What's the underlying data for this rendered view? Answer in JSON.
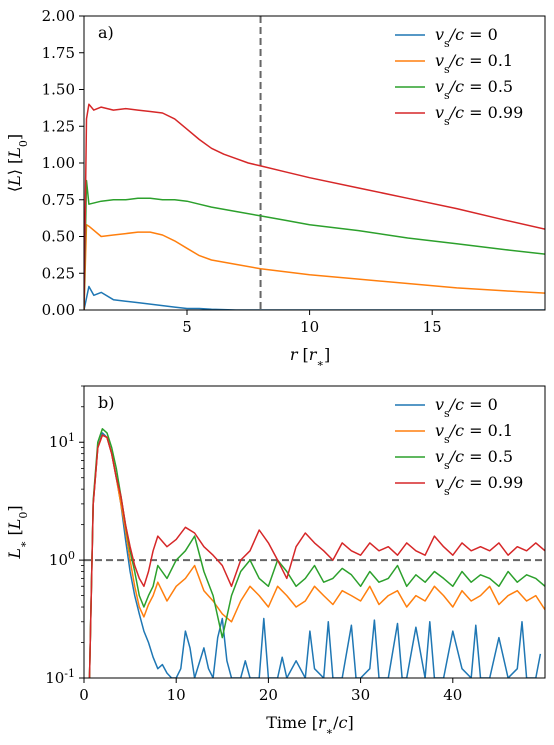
{
  "chart_data": [
    {
      "type": "line",
      "panel_label": "a)",
      "xlabel": "r [r∗]",
      "ylabel": "⟨L⟩ [L0]",
      "xlim": [
        0.8,
        19.6
      ],
      "ylim": [
        0,
        2.0
      ],
      "xticks": [
        5,
        10,
        15
      ],
      "yticks": [
        0.0,
        0.25,
        0.5,
        0.75,
        1.0,
        1.25,
        1.5,
        1.75,
        2.0
      ],
      "ytick_labels": [
        "0.00",
        "0.25",
        "0.50",
        "0.75",
        "1.00",
        "1.25",
        "1.50",
        "1.75",
        "2.00"
      ],
      "vline_x": 8.0,
      "legend_position": "top-right",
      "series": [
        {
          "name": "vs/c = 0",
          "color": "#1f77b4",
          "x": [
            0.8,
            1.0,
            1.2,
            1.5,
            2.0,
            2.5,
            3.0,
            3.5,
            4.0,
            4.5,
            5.0,
            5.5,
            6.0,
            7.0,
            8.0,
            10.0,
            12.0,
            15.0,
            19.6
          ],
          "y": [
            0.0,
            0.16,
            0.1,
            0.12,
            0.07,
            0.06,
            0.05,
            0.04,
            0.03,
            0.02,
            0.01,
            0.01,
            0.005,
            0.0,
            0.0,
            0.0,
            0.0,
            0.0,
            0.0
          ]
        },
        {
          "name": "vs/c = 0.1",
          "color": "#ff7f0e",
          "x": [
            0.8,
            0.9,
            1.0,
            1.5,
            2.0,
            2.5,
            3.0,
            3.5,
            4.0,
            4.5,
            5.0,
            5.5,
            6.0,
            7.0,
            8.0,
            9.0,
            10.0,
            12.0,
            14.0,
            16.0,
            18.0,
            19.6
          ],
          "y": [
            0.0,
            0.58,
            0.57,
            0.5,
            0.51,
            0.52,
            0.53,
            0.53,
            0.51,
            0.47,
            0.42,
            0.37,
            0.34,
            0.31,
            0.28,
            0.26,
            0.24,
            0.21,
            0.18,
            0.15,
            0.13,
            0.115
          ]
        },
        {
          "name": "vs/c = 0.5",
          "color": "#2ca02c",
          "x": [
            0.8,
            0.9,
            1.0,
            1.5,
            2.0,
            2.5,
            3.0,
            3.5,
            4.0,
            4.5,
            5.0,
            5.5,
            6.0,
            7.0,
            8.0,
            9.0,
            10.0,
            12.0,
            14.0,
            16.0,
            18.0,
            19.6
          ],
          "y": [
            0.0,
            0.88,
            0.72,
            0.74,
            0.75,
            0.75,
            0.76,
            0.76,
            0.75,
            0.75,
            0.74,
            0.72,
            0.7,
            0.67,
            0.64,
            0.61,
            0.58,
            0.54,
            0.49,
            0.45,
            0.41,
            0.38
          ]
        },
        {
          "name": "vs/c = 0.99",
          "color": "#d62728",
          "x": [
            0.8,
            0.9,
            1.0,
            1.2,
            1.5,
            2.0,
            2.5,
            3.0,
            3.5,
            4.0,
            4.5,
            5.0,
            5.5,
            6.0,
            6.5,
            7.0,
            7.5,
            8.0,
            9.0,
            10.0,
            12.0,
            14.0,
            16.0,
            18.0,
            19.6
          ],
          "y": [
            0.0,
            1.3,
            1.4,
            1.36,
            1.38,
            1.36,
            1.37,
            1.36,
            1.35,
            1.34,
            1.3,
            1.23,
            1.16,
            1.1,
            1.06,
            1.03,
            1.0,
            0.98,
            0.94,
            0.9,
            0.83,
            0.76,
            0.69,
            0.61,
            0.55
          ]
        }
      ]
    },
    {
      "type": "line",
      "panel_label": "b)",
      "xlabel": "Time [r∗/c]",
      "ylabel": "L∗ [L0]",
      "yscale": "log",
      "xlim": [
        0,
        50
      ],
      "ylim": [
        0.1,
        30
      ],
      "xticks": [
        0,
        10,
        20,
        30,
        40
      ],
      "ytick_labels": [
        "10^-1",
        "10^0",
        "10^1"
      ],
      "hline_y": 1.0,
      "legend_position": "top-right",
      "series": [
        {
          "name": "vs/c = 0",
          "color": "#1f77b4",
          "x": [
            0.6,
            1.0,
            1.5,
            2.0,
            2.5,
            3.0,
            3.5,
            4.0,
            4.5,
            5.0,
            5.5,
            6.0,
            6.5,
            7.0,
            7.5,
            8.0,
            8.5,
            9.0,
            9.5,
            10.0,
            10.5,
            11.0,
            11.5,
            12.0,
            13.0,
            13.5,
            14.0,
            14.5,
            15.0,
            15.5,
            16.0,
            17.0,
            17.5,
            18.0,
            19.0,
            19.5,
            20.0,
            21.0,
            21.5,
            22.0,
            23.0,
            24.0,
            24.5,
            25.0,
            26.0,
            26.5,
            27.0,
            28.0,
            29.0,
            29.5,
            30.0,
            31.0,
            31.5,
            32.0,
            33.0,
            34.0,
            34.5,
            35.0,
            36.0,
            37.0,
            37.5,
            38.0,
            39.0,
            40.0,
            41.0,
            42.0,
            42.5,
            43.0,
            44.0,
            45.0,
            46.0,
            47.0,
            47.5,
            48.0,
            49.0,
            49.5
          ],
          "y": [
            0.1,
            3.0,
            9.0,
            12.0,
            11.0,
            8.0,
            5.0,
            3.0,
            1.5,
            0.8,
            0.5,
            0.35,
            0.25,
            0.2,
            0.15,
            0.12,
            0.13,
            0.11,
            0.1,
            0.1,
            0.12,
            0.25,
            0.18,
            0.1,
            0.18,
            0.12,
            0.1,
            0.22,
            0.32,
            0.14,
            0.1,
            0.1,
            0.14,
            0.1,
            0.1,
            0.32,
            0.1,
            0.1,
            0.15,
            0.1,
            0.14,
            0.1,
            0.25,
            0.12,
            0.1,
            0.3,
            0.1,
            0.1,
            0.28,
            0.1,
            0.1,
            0.12,
            0.31,
            0.1,
            0.1,
            0.29,
            0.1,
            0.1,
            0.27,
            0.1,
            0.3,
            0.1,
            0.1,
            0.25,
            0.12,
            0.1,
            0.28,
            0.1,
            0.1,
            0.22,
            0.1,
            0.12,
            0.3,
            0.1,
            0.1,
            0.16
          ]
        },
        {
          "name": "vs/c = 0.1",
          "color": "#ff7f0e",
          "x": [
            0.6,
            1.0,
            1.5,
            2.0,
            2.5,
            3.0,
            3.5,
            4.0,
            4.5,
            5.0,
            5.5,
            6.0,
            6.5,
            7.0,
            7.5,
            8.0,
            9.0,
            10.0,
            11.0,
            12.0,
            13.0,
            14.0,
            15.0,
            16.0,
            17.0,
            18.0,
            19.0,
            20.0,
            21.0,
            22.0,
            23.0,
            24.0,
            25.0,
            26.0,
            27.0,
            28.0,
            29.0,
            30.0,
            31.0,
            32.0,
            33.0,
            34.0,
            35.0,
            36.0,
            37.0,
            38.0,
            39.0,
            40.0,
            41.0,
            42.0,
            43.0,
            44.0,
            45.0,
            46.0,
            47.0,
            48.0,
            49.0,
            50.0
          ],
          "y": [
            0.1,
            3.0,
            9.0,
            11.5,
            11.0,
            8.0,
            5.0,
            3.0,
            1.8,
            1.0,
            0.6,
            0.4,
            0.33,
            0.42,
            0.5,
            0.65,
            0.45,
            0.6,
            0.7,
            0.9,
            0.55,
            0.45,
            0.35,
            0.3,
            0.45,
            0.6,
            0.5,
            0.4,
            0.6,
            0.5,
            0.4,
            0.45,
            0.6,
            0.5,
            0.42,
            0.55,
            0.5,
            0.45,
            0.6,
            0.42,
            0.5,
            0.55,
            0.4,
            0.5,
            0.45,
            0.6,
            0.5,
            0.4,
            0.55,
            0.45,
            0.5,
            0.6,
            0.42,
            0.5,
            0.55,
            0.45,
            0.5,
            0.38
          ]
        },
        {
          "name": "vs/c = 0.5",
          "color": "#2ca02c",
          "x": [
            0.6,
            1.0,
            1.5,
            2.0,
            2.5,
            3.0,
            3.5,
            4.0,
            4.5,
            5.0,
            5.5,
            6.0,
            6.5,
            7.0,
            7.5,
            8.0,
            9.0,
            10.0,
            11.0,
            12.0,
            13.0,
            14.0,
            15.0,
            16.0,
            17.0,
            18.0,
            19.0,
            20.0,
            21.0,
            22.0,
            23.0,
            24.0,
            25.0,
            26.0,
            27.0,
            28.0,
            29.0,
            30.0,
            31.0,
            32.0,
            33.0,
            34.0,
            35.0,
            36.0,
            37.0,
            38.0,
            39.0,
            40.0,
            41.0,
            42.0,
            43.0,
            44.0,
            45.0,
            46.0,
            47.0,
            48.0,
            49.0,
            50.0
          ],
          "y": [
            0.1,
            3.2,
            10.0,
            13.0,
            12.0,
            9.0,
            6.0,
            3.5,
            2.0,
            1.2,
            0.8,
            0.5,
            0.4,
            0.5,
            0.6,
            0.9,
            0.7,
            1.0,
            1.2,
            1.6,
            0.8,
            0.5,
            0.22,
            0.5,
            0.8,
            1.0,
            0.7,
            0.6,
            1.0,
            0.8,
            0.6,
            0.7,
            0.9,
            0.65,
            0.7,
            0.85,
            0.75,
            0.6,
            0.8,
            0.65,
            0.7,
            0.9,
            0.6,
            0.75,
            0.65,
            0.8,
            0.7,
            0.6,
            0.8,
            0.65,
            0.75,
            0.7,
            0.6,
            0.8,
            0.65,
            0.75,
            0.7,
            0.6
          ]
        },
        {
          "name": "vs/c = 0.99",
          "color": "#d62728",
          "x": [
            0.6,
            1.0,
            1.5,
            2.0,
            2.5,
            3.0,
            3.5,
            4.0,
            4.5,
            5.0,
            5.5,
            6.0,
            6.5,
            7.0,
            7.5,
            8.0,
            9.0,
            10.0,
            11.0,
            12.0,
            13.0,
            14.0,
            15.0,
            16.0,
            17.0,
            18.0,
            19.0,
            20.0,
            21.0,
            22.0,
            23.0,
            24.0,
            25.0,
            26.0,
            27.0,
            28.0,
            29.0,
            30.0,
            31.0,
            32.0,
            33.0,
            34.0,
            35.0,
            36.0,
            37.0,
            38.0,
            39.0,
            40.0,
            41.0,
            42.0,
            43.0,
            44.0,
            45.0,
            46.0,
            47.0,
            48.0,
            49.0,
            50.0
          ],
          "y": [
            0.1,
            3.0,
            9.0,
            11.5,
            11.0,
            8.0,
            5.0,
            3.5,
            2.0,
            1.3,
            0.9,
            0.7,
            0.6,
            0.8,
            1.2,
            1.6,
            1.3,
            1.5,
            1.9,
            1.7,
            1.3,
            1.1,
            0.9,
            0.6,
            1.0,
            1.2,
            1.8,
            1.4,
            1.0,
            0.7,
            1.3,
            1.7,
            1.4,
            1.2,
            1.0,
            1.4,
            1.2,
            1.1,
            1.4,
            1.2,
            1.3,
            1.1,
            1.4,
            1.2,
            1.1,
            1.6,
            1.3,
            1.1,
            1.4,
            1.2,
            1.3,
            1.2,
            1.4,
            1.1,
            1.3,
            1.2,
            1.4,
            1.2
          ]
        }
      ]
    }
  ]
}
